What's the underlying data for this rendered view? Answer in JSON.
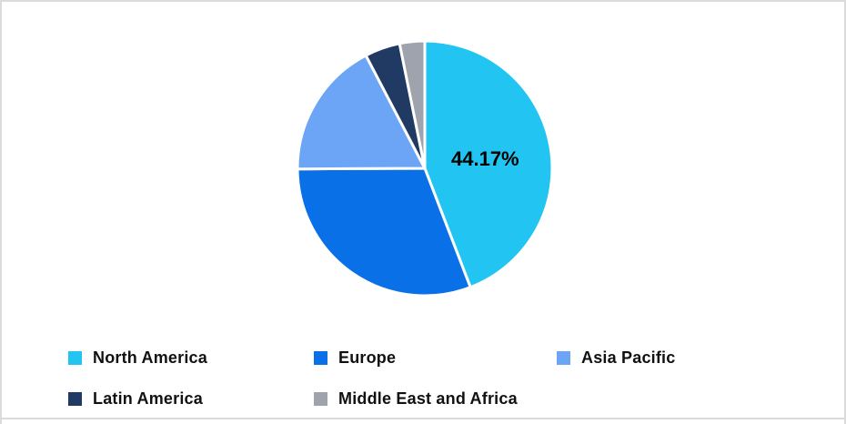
{
  "chart_data": {
    "type": "pie",
    "title": "",
    "labels": [
      "North America",
      "Europe",
      "Asia Pacific",
      "Latin America",
      "Middle East and Africa"
    ],
    "values": [
      44.17,
      30.75,
      17.42,
      4.48,
      3.18
    ],
    "colors": [
      "#22C5F2",
      "#0A70E8",
      "#6CA5F6",
      "#203A64",
      "#9EA3AD"
    ],
    "start_angle_deg": 0,
    "direction": "clockwise",
    "slice_border_color": "#FFFFFF",
    "legend_position": "bottom",
    "datalabels": [
      {
        "series": "North America",
        "text": "44.17%"
      }
    ]
  },
  "frame": {
    "background_color": "#FFFFFF",
    "border_color": "#DBDBDB"
  }
}
